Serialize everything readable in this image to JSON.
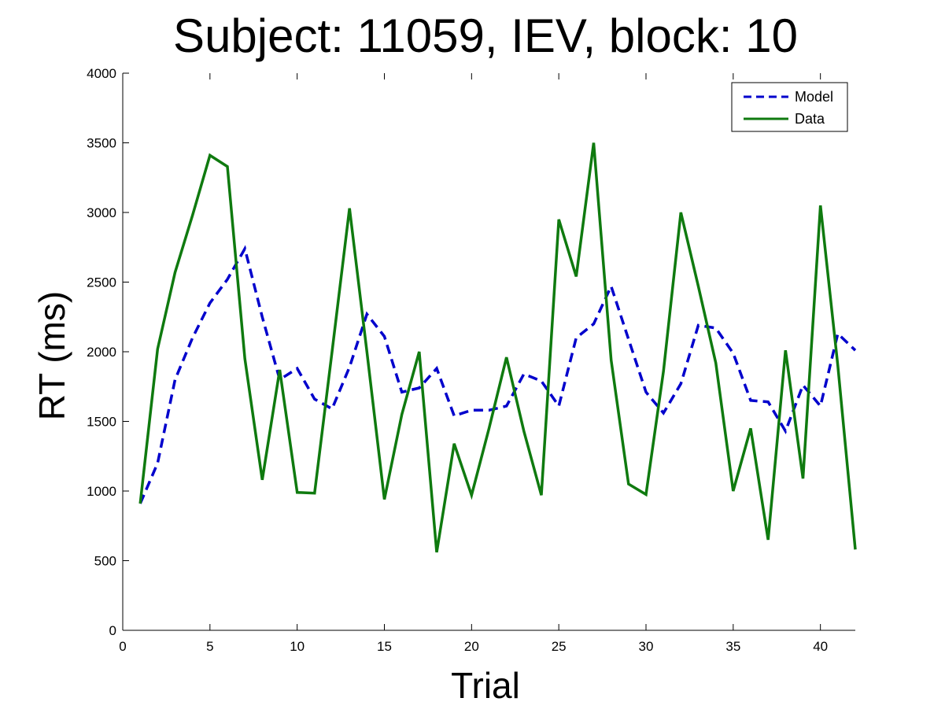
{
  "chart_data": {
    "type": "line",
    "title": "Subject: 11059, IEV, block: 10",
    "xlabel": "Trial",
    "ylabel": "RT (ms)",
    "xlim": [
      0,
      42
    ],
    "ylim": [
      0,
      4000
    ],
    "xticks": [
      0,
      5,
      10,
      15,
      20,
      25,
      30,
      35,
      40
    ],
    "yticks": [
      0,
      500,
      1000,
      1500,
      2000,
      2500,
      3000,
      3500,
      4000
    ],
    "grid": false,
    "legend": "top-right",
    "x": [
      1,
      2,
      3,
      4,
      5,
      6,
      7,
      8,
      9,
      10,
      11,
      12,
      13,
      14,
      15,
      16,
      17,
      18,
      19,
      20,
      21,
      22,
      23,
      24,
      25,
      26,
      27,
      28,
      29,
      30,
      31,
      32,
      33,
      34,
      35,
      36,
      37,
      38,
      39,
      40,
      41,
      42
    ],
    "series": [
      {
        "name": "Model",
        "color": "#0000cc",
        "style": "dashed",
        "values": [
          910,
          1200,
          1800,
          2100,
          2350,
          2520,
          2740,
          2250,
          1800,
          1880,
          1660,
          1590,
          1890,
          2270,
          2110,
          1710,
          1740,
          1880,
          1540,
          1580,
          1580,
          1610,
          1840,
          1790,
          1610,
          2100,
          2200,
          2470,
          2090,
          1710,
          1560,
          1770,
          2190,
          2170,
          1990,
          1650,
          1640,
          1430,
          1760,
          1610,
          2130,
          2010
        ]
      },
      {
        "name": "Data",
        "color": "#0f7a0f",
        "style": "solid",
        "values": [
          910,
          2020,
          2570,
          2980,
          3410,
          3330,
          1950,
          1080,
          1870,
          990,
          985,
          2000,
          3030,
          2000,
          940,
          1550,
          2000,
          560,
          1340,
          970,
          1450,
          1960,
          1430,
          970,
          2950,
          2540,
          3500,
          1940,
          1050,
          975,
          1860,
          3000,
          2470,
          1920,
          1000,
          1450,
          650,
          2010,
          1090,
          3050,
          1900,
          580
        ]
      }
    ]
  }
}
